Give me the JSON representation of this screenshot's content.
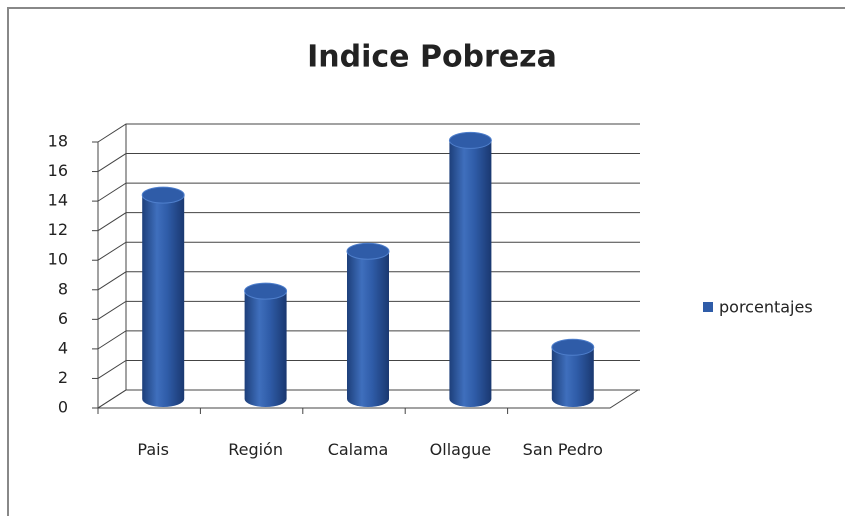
{
  "chart_data": {
    "type": "bar",
    "title": "Indice Pobreza",
    "categories": [
      "Pais",
      "Región",
      "Calama",
      "Ollague",
      "San Pedro"
    ],
    "series": [
      {
        "name": "porcentajes",
        "color": "#2f5ca8",
        "values": [
          13.8,
          7.3,
          10,
          17.5,
          3.5
        ]
      }
    ],
    "ylim": [
      0,
      18
    ],
    "yticks": [
      0,
      2,
      4,
      6,
      8,
      10,
      12,
      14,
      16,
      18
    ],
    "grid": true,
    "legend": "right"
  }
}
